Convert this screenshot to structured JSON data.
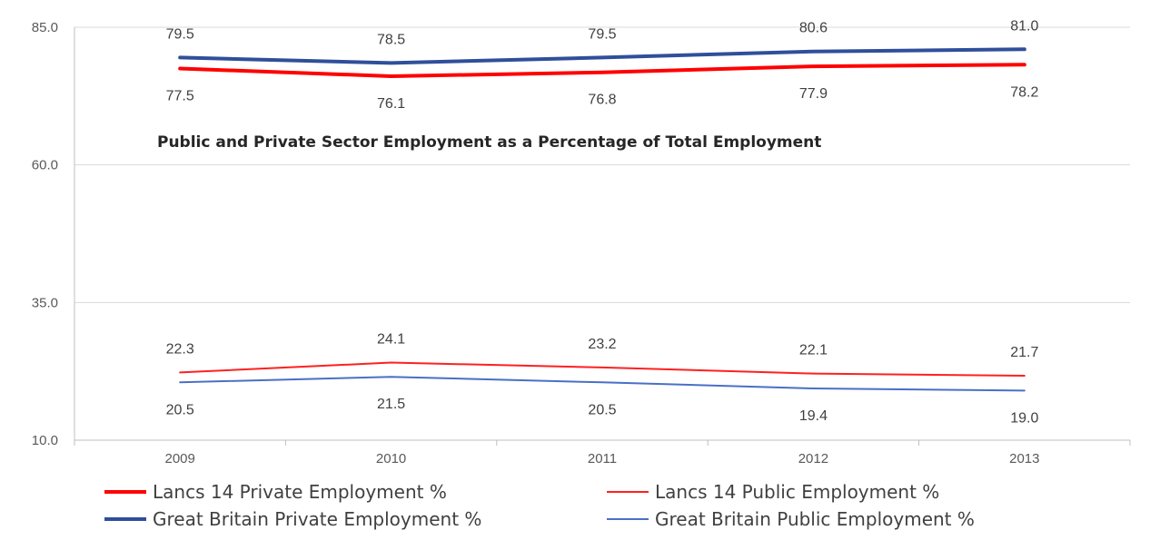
{
  "chart_data": {
    "type": "line",
    "title": "Public and Private Sector Employment as a Percentage of Total Employment",
    "xlabel": "",
    "ylabel": "",
    "categories": [
      "2009",
      "2010",
      "2011",
      "2012",
      "2013"
    ],
    "ylim": [
      10,
      85
    ],
    "yticks": [
      "10.0",
      "35.0",
      "60.0",
      "85.0"
    ],
    "grid": true,
    "legend_position": "bottom",
    "series": [
      {
        "name": "Lancs 14 Private Employment %",
        "values": [
          77.5,
          76.1,
          76.8,
          77.9,
          78.2
        ],
        "color": "#ff0000",
        "weight": "thick"
      },
      {
        "name": "Lancs 14 Public Employment %",
        "values": [
          22.3,
          24.1,
          23.2,
          22.1,
          21.7
        ],
        "color": "#ff2020",
        "weight": "thin"
      },
      {
        "name": "Great Britain Private Employment %",
        "values": [
          79.5,
          78.5,
          79.5,
          80.6,
          81.0
        ],
        "color": "#2f4f9b",
        "weight": "thick"
      },
      {
        "name": "Great Britain Public Employment %",
        "values": [
          20.5,
          21.5,
          20.5,
          19.4,
          19.0
        ],
        "color": "#4a6fc7",
        "weight": "thin"
      }
    ],
    "data_labels": [
      {
        "series": 0,
        "values": [
          "77.5",
          "76.1",
          "76.8",
          "77.9",
          "78.2"
        ],
        "position": "below"
      },
      {
        "series": 1,
        "values": [
          "22.3",
          "24.1",
          "23.2",
          "22.1",
          "21.7"
        ],
        "position": "above"
      },
      {
        "series": 2,
        "values": [
          "79.5",
          "78.5",
          "79.5",
          "80.6",
          "81.0"
        ],
        "position": "above"
      },
      {
        "series": 3,
        "values": [
          "20.5",
          "21.5",
          "20.5",
          "19.4",
          "19.0"
        ],
        "position": "below"
      }
    ]
  }
}
